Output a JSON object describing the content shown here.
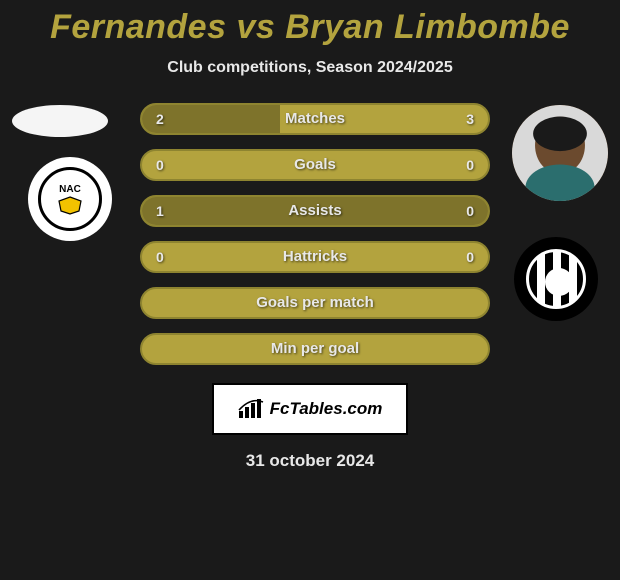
{
  "title": "Fernandes vs Bryan Limbombe",
  "subtitle": "Club competitions, Season 2024/2025",
  "date": "31 october 2024",
  "brand": {
    "text": "FcTables.com"
  },
  "colors": {
    "accent": "#b3a33e",
    "accent_dark": "#7e732b",
    "accent_border": "#8e8430",
    "bg": "#1a1a1a",
    "text_light": "#e8e8e8"
  },
  "players": {
    "left": {
      "name": "Fernandes",
      "club": "NAC"
    },
    "right": {
      "name": "Bryan Limbombe",
      "club": "Heracles"
    }
  },
  "stats": [
    {
      "label": "Matches",
      "left_val": "2",
      "right_val": "3",
      "left_fill_pct": 40,
      "right_fill_pct": 0
    },
    {
      "label": "Goals",
      "left_val": "0",
      "right_val": "0",
      "left_fill_pct": 0,
      "right_fill_pct": 0
    },
    {
      "label": "Assists",
      "left_val": "1",
      "right_val": "0",
      "left_fill_pct": 100,
      "right_fill_pct": 0
    },
    {
      "label": "Hattricks",
      "left_val": "0",
      "right_val": "0",
      "left_fill_pct": 0,
      "right_fill_pct": 0
    },
    {
      "label": "Goals per match",
      "left_val": "",
      "right_val": "",
      "left_fill_pct": 0,
      "right_fill_pct": 0
    },
    {
      "label": "Min per goal",
      "left_val": "",
      "right_val": "",
      "left_fill_pct": 0,
      "right_fill_pct": 0
    }
  ]
}
